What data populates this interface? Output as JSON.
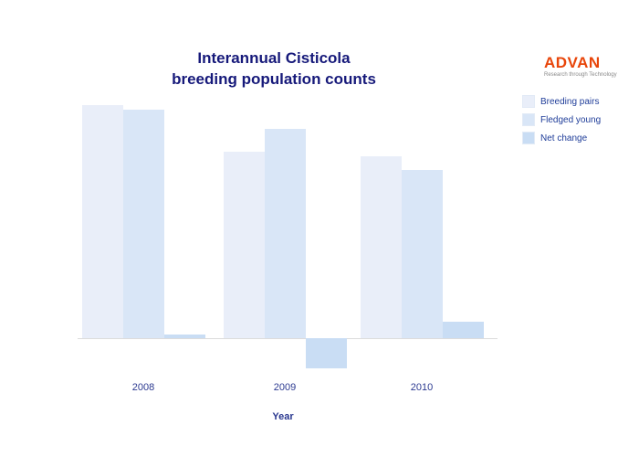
{
  "title": {
    "line1": "Interannual Cisticola",
    "line2": "breeding population counts"
  },
  "logo": {
    "name": "ADVAN",
    "tagline": "Research through Technology"
  },
  "xaxis": {
    "label": "Year"
  },
  "chart_data": {
    "type": "bar",
    "title": "Interannual Cisticola breeding population counts",
    "xlabel": "Year",
    "ylabel": "",
    "categories": [
      "2008",
      "2009",
      "2010"
    ],
    "series": [
      {
        "name": "Breeding pairs",
        "color": "#e9eef9",
        "values": [
          100,
          80,
          78
        ]
      },
      {
        "name": "Fledged young",
        "color": "#d9e6f7",
        "values": [
          98,
          90,
          72
        ]
      },
      {
        "name": "Net change",
        "color": "#c9ddf4",
        "values": [
          1.5,
          -13,
          7
        ]
      }
    ],
    "ylim": [
      -20,
      105
    ],
    "grid": false,
    "legend_position": "top-right",
    "accent_colors": {
      "title_text": "#16197a",
      "axis_text": "#2b3990",
      "logo_orange": "#e8450a"
    }
  }
}
